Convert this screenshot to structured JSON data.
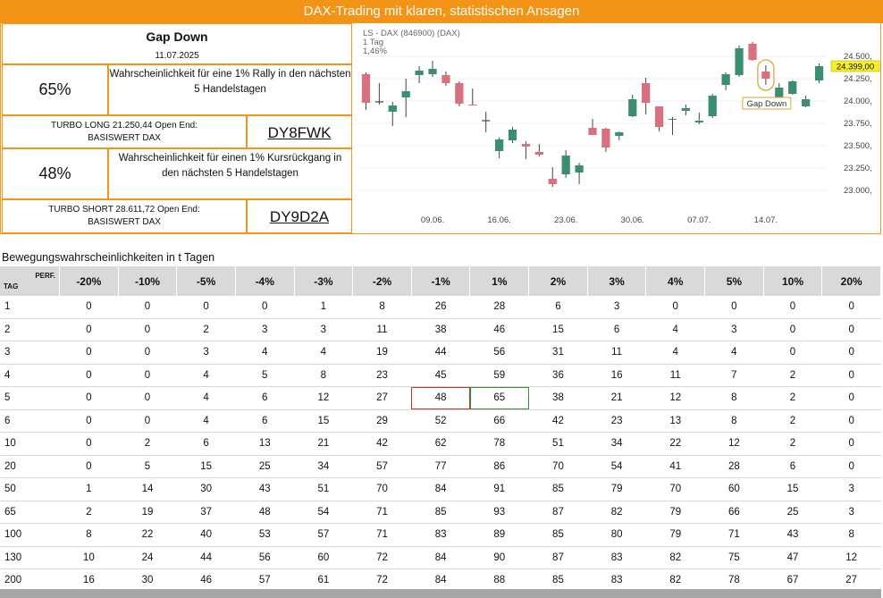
{
  "banner": "DAX-Trading mit klaren, statistischen Ansagen",
  "card": {
    "title": "Gap Down",
    "date": "11.07.2025",
    "long": {
      "pct": "65%",
      "text": "Wahrscheinlichkeit für eine 1% Rally in den nächsten 5 Handelstagen",
      "turbo_line1": "TURBO LONG 21.250,44 Open End:",
      "turbo_line2": "BASISWERT DAX",
      "wkn": "DY8FWK"
    },
    "short": {
      "pct": "48%",
      "text": "Wahrscheinlichkeit für einen 1% Kursrückgang in den nächsten 5 Handelstagen",
      "turbo_line1": "TURBO SHORT 28.611,72 Open End:",
      "turbo_line2": "BASISWERT DAX",
      "wkn": "DY9D2A"
    }
  },
  "chart_data": {
    "type": "candlestick",
    "legend": [
      "LS - DAX (846900) (DAX)",
      "1 Tag",
      "1,46%"
    ],
    "y_ticks": [
      "24.500,",
      "24.250,",
      "24.000,",
      "23.750,",
      "23.500,",
      "23.250,",
      "23.000,"
    ],
    "y_tick_values": [
      24500,
      24250,
      24000,
      23750,
      23500,
      23250,
      23000
    ],
    "ylim": [
      22800,
      24700
    ],
    "x_labels": [
      {
        "label": "09.06.",
        "index": 5
      },
      {
        "label": "16.06.",
        "index": 10
      },
      {
        "label": "23.06.",
        "index": 15
      },
      {
        "label": "30.06.",
        "index": 20
      },
      {
        "label": "07.07.",
        "index": 25
      },
      {
        "label": "14.07.",
        "index": 30
      }
    ],
    "last_price": "24.399,00",
    "annotation": "Gap Down",
    "annotation_index": 28,
    "colors": {
      "up": "#3B8F6E",
      "down": "#D9707E",
      "neutral": "#555555"
    },
    "candles": [
      {
        "o": 24300,
        "h": 24320,
        "l": 23900,
        "c": 23980
      },
      {
        "o": 23990,
        "h": 24200,
        "l": 23960,
        "c": 23990
      },
      {
        "o": 23880,
        "h": 23990,
        "l": 23720,
        "c": 23950
      },
      {
        "o": 24040,
        "h": 24250,
        "l": 23820,
        "c": 24110
      },
      {
        "o": 24290,
        "h": 24390,
        "l": 24200,
        "c": 24340
      },
      {
        "o": 24300,
        "h": 24450,
        "l": 24270,
        "c": 24360
      },
      {
        "o": 24290,
        "h": 24330,
        "l": 24170,
        "c": 24200
      },
      {
        "o": 24200,
        "h": 24220,
        "l": 23940,
        "c": 23970
      },
      {
        "o": 23960,
        "h": 24140,
        "l": 23950,
        "c": 23950
      },
      {
        "o": 23780,
        "h": 23880,
        "l": 23650,
        "c": 23780
      },
      {
        "o": 23440,
        "h": 23590,
        "l": 23360,
        "c": 23570
      },
      {
        "o": 23560,
        "h": 23710,
        "l": 23530,
        "c": 23680
      },
      {
        "o": 23520,
        "h": 23550,
        "l": 23350,
        "c": 23490
      },
      {
        "o": 23430,
        "h": 23520,
        "l": 23380,
        "c": 23400
      },
      {
        "o": 23130,
        "h": 23260,
        "l": 23040,
        "c": 23070
      },
      {
        "o": 23180,
        "h": 23450,
        "l": 23140,
        "c": 23390
      },
      {
        "o": 23200,
        "h": 23310,
        "l": 23070,
        "c": 23280
      },
      {
        "o": 23700,
        "h": 23800,
        "l": 23620,
        "c": 23620
      },
      {
        "o": 23690,
        "h": 23700,
        "l": 23430,
        "c": 23480
      },
      {
        "o": 23610,
        "h": 23660,
        "l": 23560,
        "c": 23650
      },
      {
        "o": 23830,
        "h": 24070,
        "l": 23820,
        "c": 24020
      },
      {
        "o": 24200,
        "h": 24260,
        "l": 23850,
        "c": 23980
      },
      {
        "o": 23940,
        "h": 23940,
        "l": 23660,
        "c": 23710
      },
      {
        "o": 23790,
        "h": 23820,
        "l": 23620,
        "c": 23800
      },
      {
        "o": 23890,
        "h": 23960,
        "l": 23840,
        "c": 23920
      },
      {
        "o": 23760,
        "h": 23870,
        "l": 23740,
        "c": 23780
      },
      {
        "o": 23830,
        "h": 24080,
        "l": 23810,
        "c": 24060
      },
      {
        "o": 24180,
        "h": 24320,
        "l": 24120,
        "c": 24300
      },
      {
        "o": 24290,
        "h": 24620,
        "l": 24270,
        "c": 24590
      },
      {
        "o": 24640,
        "h": 24660,
        "l": 24450,
        "c": 24460
      },
      {
        "o": 24330,
        "h": 24400,
        "l": 24180,
        "c": 24250
      },
      {
        "o": 24000,
        "h": 24200,
        "l": 23990,
        "c": 24150
      },
      {
        "o": 24080,
        "h": 24230,
        "l": 24070,
        "c": 24220
      },
      {
        "o": 23940,
        "h": 24060,
        "l": 23930,
        "c": 24020
      },
      {
        "o": 24230,
        "h": 24420,
        "l": 24200,
        "c": 24390
      }
    ]
  },
  "table": {
    "title": "Bewegungswahrscheinlichkeiten in t Tagen",
    "tag_label": "TAG",
    "perf_label": "PERF.",
    "columns": [
      "-20%",
      "-10%",
      "-5%",
      "-4%",
      "-3%",
      "-2%",
      "-1%",
      "1%",
      "2%",
      "3%",
      "4%",
      "5%",
      "10%",
      "20%"
    ],
    "rows": [
      [
        "1",
        "0",
        "0",
        "0",
        "0",
        "1",
        "8",
        "26",
        "28",
        "6",
        "3",
        "0",
        "0",
        "0",
        "0"
      ],
      [
        "2",
        "0",
        "0",
        "2",
        "3",
        "3",
        "11",
        "38",
        "46",
        "15",
        "6",
        "4",
        "3",
        "0",
        "0"
      ],
      [
        "3",
        "0",
        "0",
        "3",
        "4",
        "4",
        "19",
        "44",
        "56",
        "31",
        "11",
        "4",
        "4",
        "0",
        "0"
      ],
      [
        "4",
        "0",
        "0",
        "4",
        "5",
        "8",
        "23",
        "45",
        "59",
        "36",
        "16",
        "11",
        "7",
        "2",
        "0"
      ],
      [
        "5",
        "0",
        "0",
        "4",
        "6",
        "12",
        "27",
        "48",
        "65",
        "38",
        "21",
        "12",
        "8",
        "2",
        "0"
      ],
      [
        "6",
        "0",
        "0",
        "4",
        "6",
        "15",
        "29",
        "52",
        "66",
        "42",
        "23",
        "13",
        "8",
        "2",
        "0"
      ],
      [
        "10",
        "0",
        "2",
        "6",
        "13",
        "21",
        "42",
        "62",
        "78",
        "51",
        "34",
        "22",
        "12",
        "2",
        "0"
      ],
      [
        "20",
        "0",
        "5",
        "15",
        "25",
        "34",
        "57",
        "77",
        "86",
        "70",
        "54",
        "41",
        "28",
        "6",
        "0"
      ],
      [
        "50",
        "1",
        "14",
        "30",
        "43",
        "51",
        "70",
        "84",
        "91",
        "85",
        "79",
        "70",
        "60",
        "15",
        "3"
      ],
      [
        "65",
        "2",
        "19",
        "37",
        "48",
        "54",
        "71",
        "85",
        "93",
        "87",
        "82",
        "79",
        "66",
        "25",
        "3"
      ],
      [
        "100",
        "8",
        "22",
        "40",
        "53",
        "57",
        "71",
        "83",
        "89",
        "85",
        "80",
        "79",
        "71",
        "43",
        "8"
      ],
      [
        "130",
        "10",
        "24",
        "44",
        "56",
        "60",
        "72",
        "84",
        "90",
        "87",
        "83",
        "82",
        "75",
        "47",
        "12"
      ],
      [
        "200",
        "16",
        "30",
        "46",
        "57",
        "61",
        "72",
        "84",
        "88",
        "85",
        "83",
        "82",
        "78",
        "67",
        "27"
      ]
    ],
    "highlight": {
      "row": "5",
      "red_col": "-1%",
      "green_col": "1%"
    }
  }
}
